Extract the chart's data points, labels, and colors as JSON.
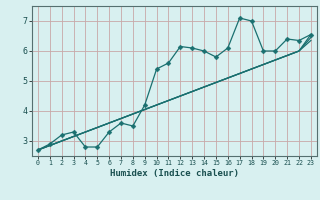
{
  "xlabel": "Humidex (Indice chaleur)",
  "background_color": "#d8f0f0",
  "grid_color": "#c8a8a8",
  "line_color": "#1a7070",
  "xlim": [
    -0.5,
    23.5
  ],
  "ylim": [
    2.5,
    7.5
  ],
  "yticks": [
    3,
    4,
    5,
    6,
    7
  ],
  "xticks": [
    0,
    1,
    2,
    3,
    4,
    5,
    6,
    7,
    8,
    9,
    10,
    11,
    12,
    13,
    14,
    15,
    16,
    17,
    18,
    19,
    20,
    21,
    22,
    23
  ],
  "line1_x": [
    0,
    1,
    2,
    3,
    4,
    5,
    6,
    7,
    8,
    9,
    10,
    11,
    12,
    13,
    14,
    15,
    16,
    17,
    18,
    19,
    20,
    21,
    22,
    23
  ],
  "line1_y": [
    2.7,
    2.9,
    3.2,
    3.3,
    2.8,
    2.8,
    3.3,
    3.6,
    3.5,
    4.2,
    5.4,
    5.6,
    6.15,
    6.1,
    6.0,
    5.8,
    6.1,
    7.1,
    7.0,
    6.0,
    6.0,
    6.4,
    6.35,
    6.55
  ],
  "line2_x": [
    0,
    1,
    2,
    3,
    4,
    5,
    6,
    7,
    8,
    9,
    10,
    11,
    12,
    13,
    14,
    15,
    16,
    17,
    18,
    19,
    20,
    21,
    22,
    23
  ],
  "line2_y": [
    2.7,
    2.85,
    3.0,
    3.15,
    3.3,
    3.45,
    3.6,
    3.75,
    3.9,
    4.05,
    4.2,
    4.35,
    4.5,
    4.65,
    4.8,
    4.95,
    5.1,
    5.25,
    5.4,
    5.55,
    5.7,
    5.85,
    6.0,
    6.55
  ],
  "line3_x": [
    0,
    1,
    2,
    3,
    4,
    5,
    6,
    7,
    8,
    9,
    10,
    11,
    12,
    13,
    14,
    15,
    16,
    17,
    18,
    19,
    20,
    21,
    22,
    23
  ],
  "line3_y": [
    2.7,
    2.85,
    3.0,
    3.15,
    3.3,
    3.45,
    3.6,
    3.75,
    3.9,
    4.05,
    4.2,
    4.35,
    4.5,
    4.65,
    4.8,
    4.95,
    5.1,
    5.25,
    5.4,
    5.55,
    5.7,
    5.85,
    6.0,
    6.45
  ],
  "line4_x": [
    0,
    1,
    2,
    3,
    4,
    5,
    6,
    7,
    8,
    9,
    10,
    11,
    12,
    13,
    14,
    15,
    16,
    17,
    18,
    19,
    20,
    21,
    22,
    23
  ],
  "line4_y": [
    2.7,
    2.85,
    3.0,
    3.15,
    3.3,
    3.45,
    3.6,
    3.75,
    3.9,
    4.05,
    4.2,
    4.35,
    4.5,
    4.65,
    4.8,
    4.95,
    5.1,
    5.25,
    5.4,
    5.55,
    5.7,
    5.85,
    6.0,
    6.35
  ]
}
